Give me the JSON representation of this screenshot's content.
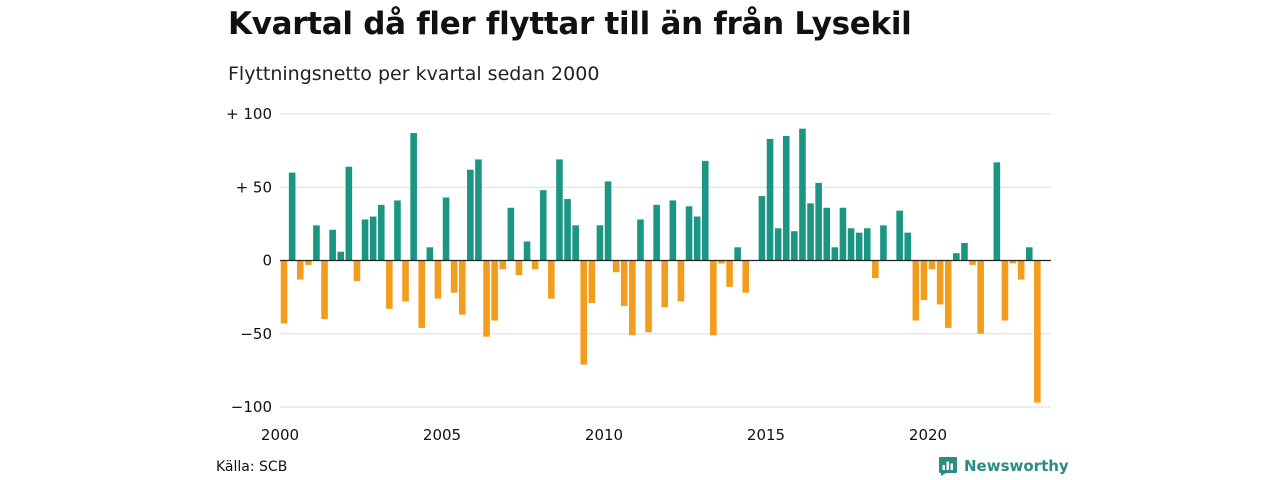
{
  "chart_data": {
    "type": "bar",
    "title": "Kvartal då fler flyttar till än från Lysekil",
    "subtitle": "Flyttningsnetto per kvartal sedan 2000",
    "source": "Källa: SCB",
    "brand": "Newsworthy",
    "x_start_year": 2000,
    "quarters_per_year": 4,
    "x_ticks": [
      "2000",
      "2005",
      "2010",
      "2015",
      "2020"
    ],
    "y_ticks": [
      {
        "value": 100,
        "label": "+ 100"
      },
      {
        "value": 50,
        "label": "+  50"
      },
      {
        "value": 0,
        "label": "0"
      },
      {
        "value": -50,
        "label": "−50"
      },
      {
        "value": -100,
        "label": "−100"
      }
    ],
    "ylim": [
      -100,
      100
    ],
    "grid": true,
    "colors": {
      "positive": "#1a9682",
      "negative": "#f29d1e",
      "grid": "#dedede",
      "baseline": "#222222"
    },
    "values": [
      -43,
      60,
      -13,
      -3,
      24,
      -40,
      21,
      6,
      64,
      -14,
      28,
      30,
      38,
      -33,
      41,
      -28,
      87,
      -46,
      9,
      -26,
      43,
      -22,
      -37,
      62,
      69,
      -52,
      -41,
      -6,
      36,
      -10,
      13,
      -6,
      48,
      -26,
      69,
      42,
      24,
      -71,
      -29,
      24,
      54,
      -8,
      -31,
      -51,
      28,
      -49,
      38,
      -32,
      41,
      -28,
      37,
      30,
      68,
      -51,
      -2,
      -18,
      9,
      -22,
      0,
      44,
      83,
      22,
      85,
      20,
      90,
      39,
      53,
      36,
      9,
      36,
      22,
      19,
      22,
      -12,
      24,
      0,
      34,
      19,
      -41,
      -27,
      -6,
      -30,
      -46,
      5,
      12,
      -3,
      -50,
      0,
      67,
      -41,
      -2,
      -13,
      9,
      -97
    ]
  }
}
